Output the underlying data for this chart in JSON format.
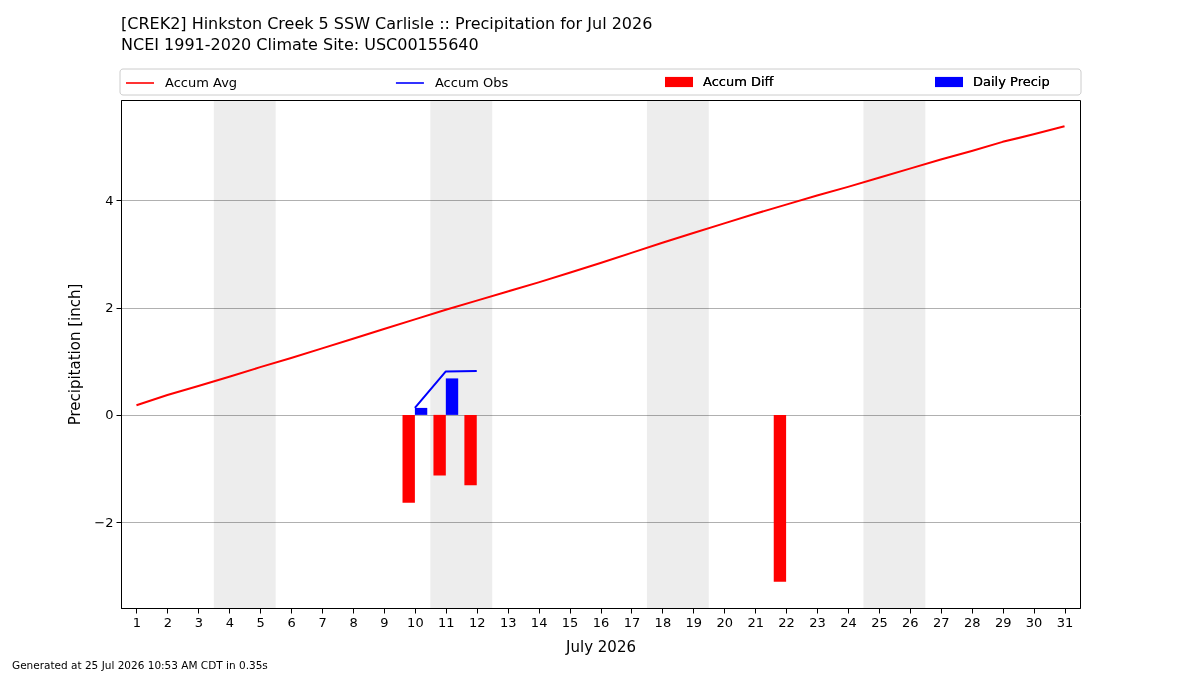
{
  "chart_data": {
    "type": "line",
    "title": "[CREK2] Hinkston Creek 5 SSW Carlisle :: Precipitation for Jul 2026",
    "subtitle": "NCEI 1991-2020 Climate Site: USC00155640",
    "xlabel": "July 2026",
    "ylabel": "Precipitation [inch]",
    "x": [
      1,
      2,
      3,
      4,
      5,
      6,
      7,
      8,
      9,
      10,
      11,
      12,
      13,
      14,
      15,
      16,
      17,
      18,
      19,
      20,
      21,
      22,
      23,
      24,
      25,
      26,
      27,
      28,
      29,
      30,
      31
    ],
    "xlim": [
      0.5,
      31.5
    ],
    "xticks": [
      1,
      2,
      3,
      4,
      5,
      6,
      7,
      8,
      9,
      10,
      11,
      12,
      13,
      14,
      15,
      16,
      17,
      18,
      19,
      20,
      21,
      22,
      23,
      24,
      25,
      26,
      27,
      28,
      29,
      30,
      31
    ],
    "ylim": [
      -3.6,
      5.87
    ],
    "yticks": [
      -2,
      0,
      2,
      4
    ],
    "grid": "y",
    "legend": "top",
    "bands": [
      {
        "axis": "x",
        "from": 3.5,
        "to": 5.5,
        "color": "#ededed"
      },
      {
        "axis": "x",
        "from": 10.5,
        "to": 12.5,
        "color": "#ededed"
      },
      {
        "axis": "x",
        "from": 17.5,
        "to": 19.5,
        "color": "#ededed"
      },
      {
        "axis": "x",
        "from": 24.5,
        "to": 26.5,
        "color": "#ededed"
      }
    ],
    "series": [
      {
        "name": "Accum Avg",
        "color": "#ff0000",
        "values": [
          0.18,
          0.37,
          0.54,
          0.71,
          0.89,
          1.06,
          1.24,
          1.42,
          1.6,
          1.78,
          1.96,
          2.13,
          2.3,
          2.47,
          2.65,
          2.83,
          3.02,
          3.21,
          3.39,
          3.57,
          3.75,
          3.92,
          4.09,
          4.25,
          4.42,
          4.59,
          4.76,
          4.92,
          5.09,
          5.23,
          5.38
        ]
      },
      {
        "name": "Accum Obs",
        "color": "#0000ff",
        "x": [
          10,
          11,
          12
        ],
        "values": [
          0.13,
          0.81,
          0.82
        ]
      },
      {
        "name": "Accum Diff",
        "type": "bar",
        "color": "#ff0000",
        "x": [
          10,
          11,
          12,
          22
        ],
        "values": [
          -1.64,
          -1.13,
          -1.31,
          -3.11
        ]
      },
      {
        "name": "Daily Precip",
        "type": "bar",
        "color": "#0000ff",
        "x": [
          10,
          11
        ],
        "values": [
          0.13,
          0.68
        ]
      }
    ],
    "annotations": [
      "Generated at 25 Jul 2026 10:53 AM CDT in 0.35s"
    ]
  }
}
